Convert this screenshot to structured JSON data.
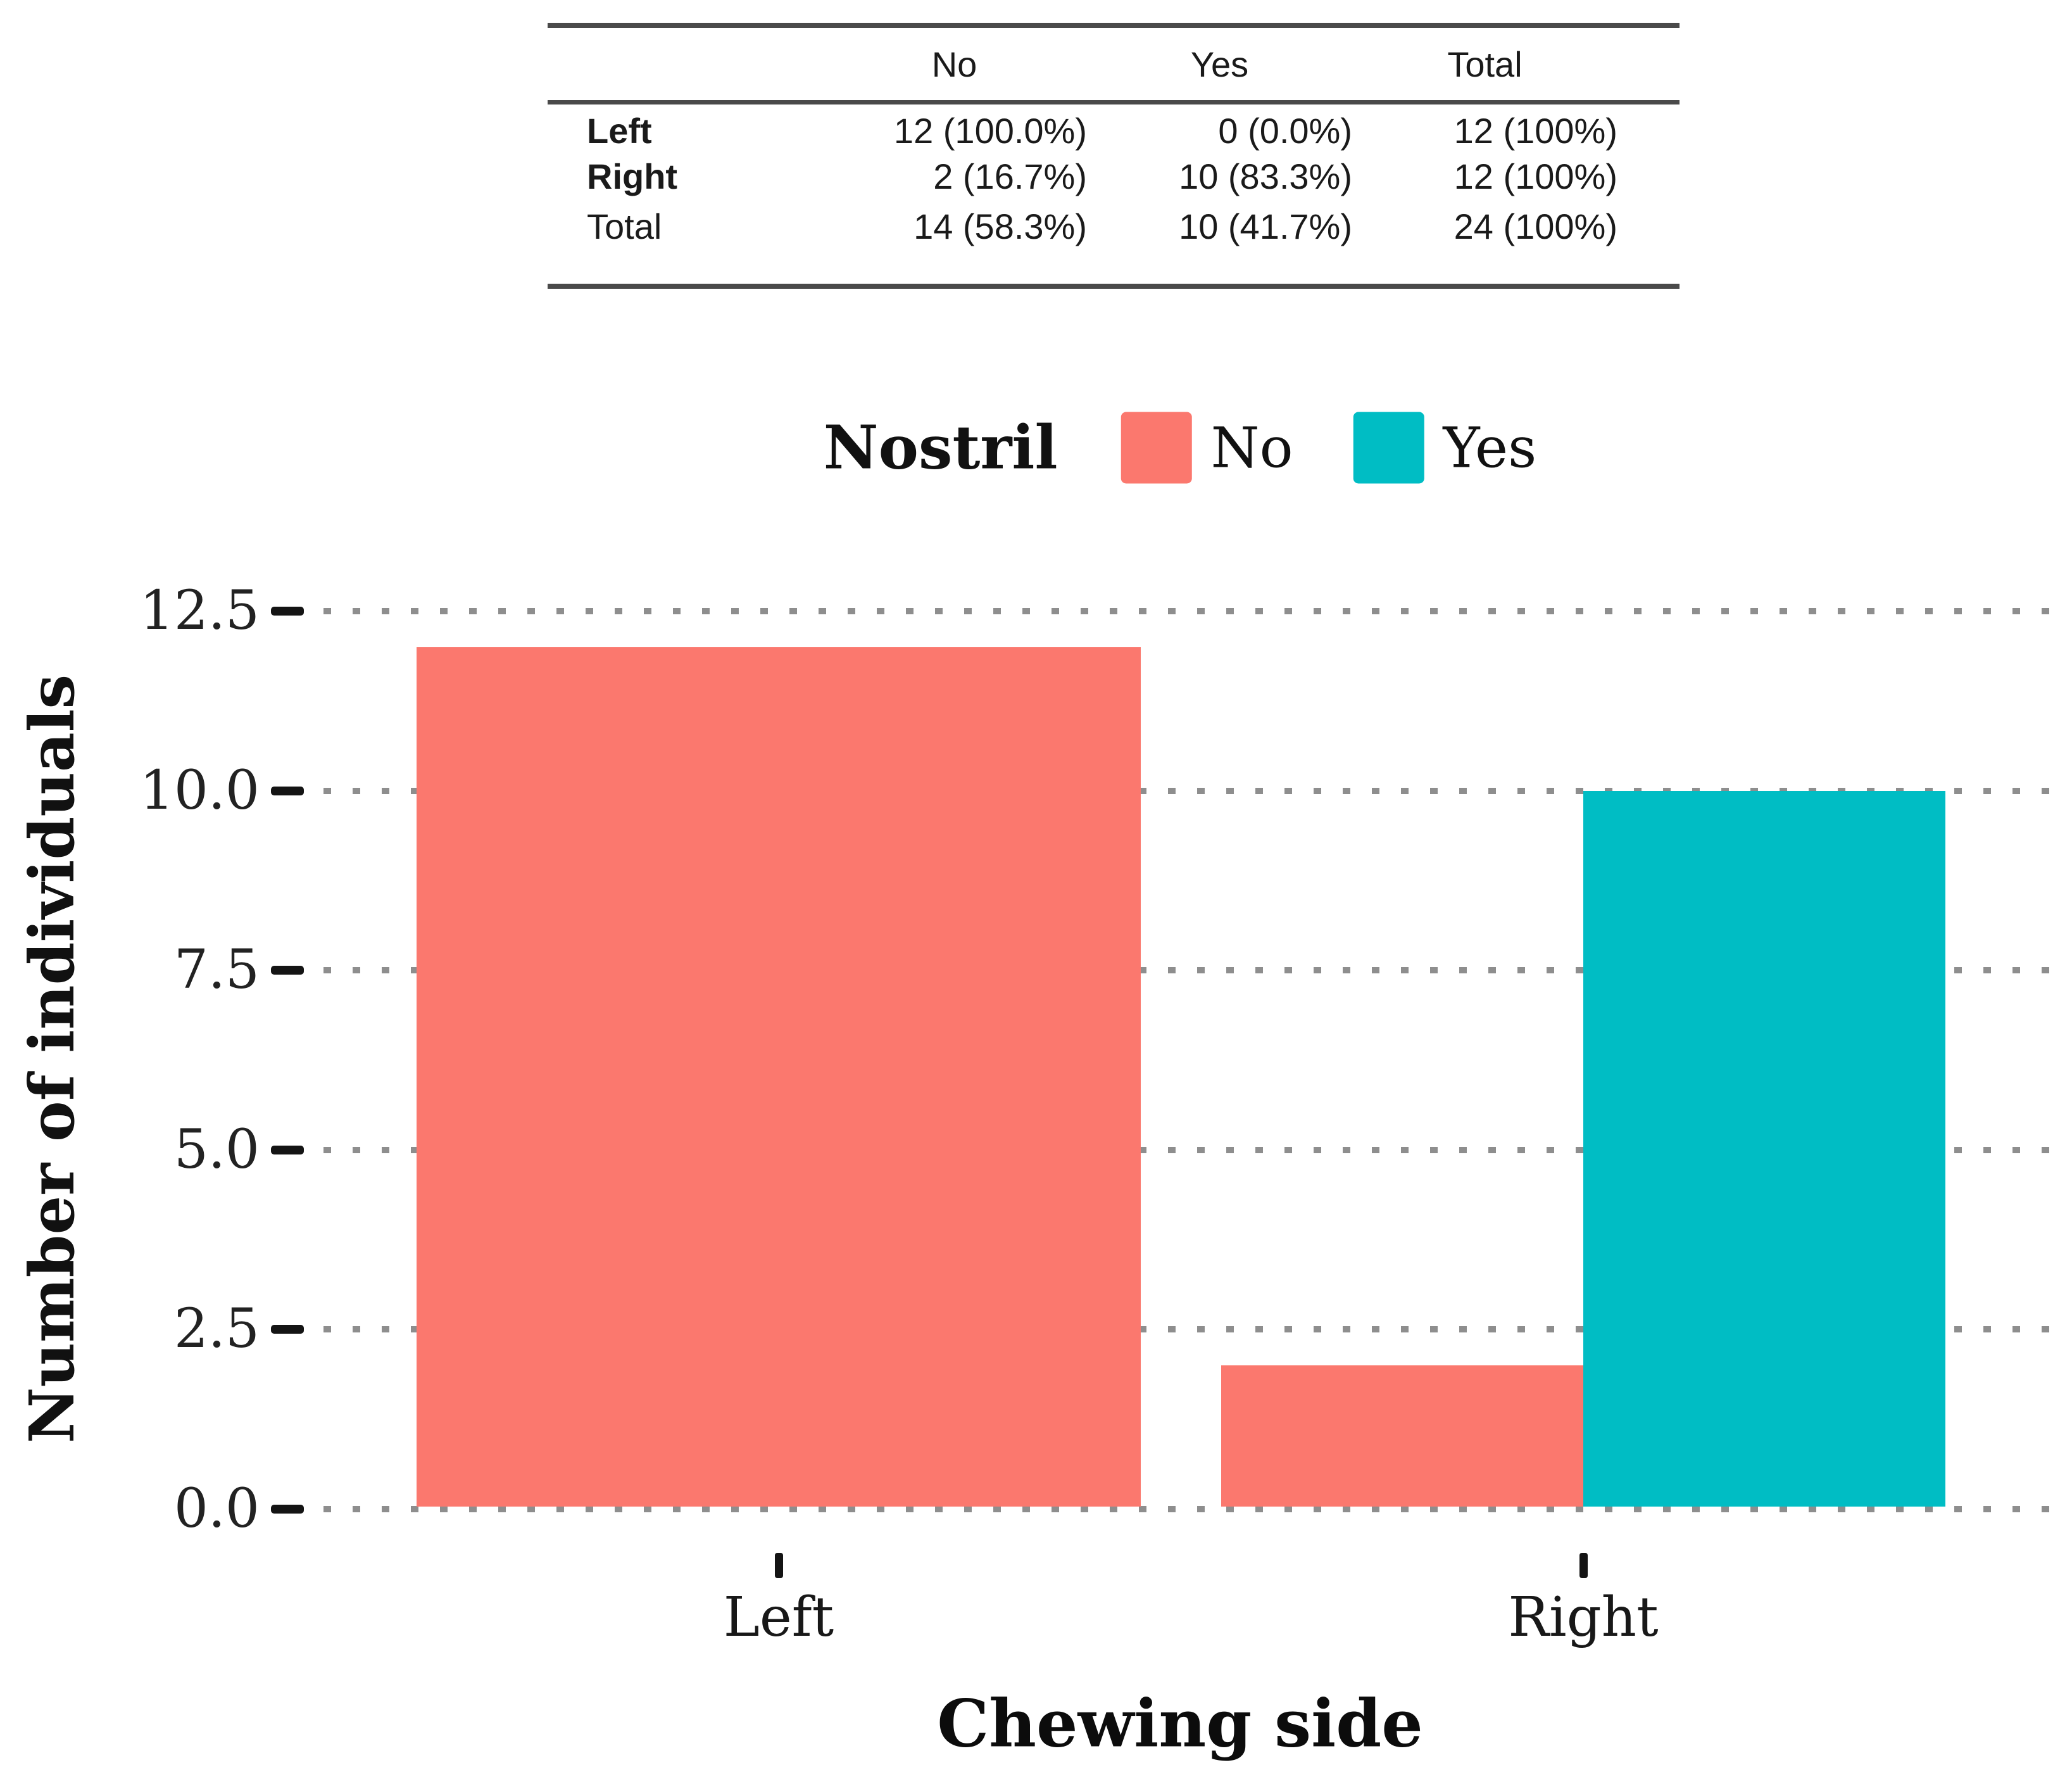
{
  "colors": {
    "no": "#FB786E",
    "yes": "#00BDC4",
    "grid_dot": "#8E8E8E",
    "table_rule": "#4A4A4A",
    "tick": "#141414"
  },
  "table": {
    "col_headers": [
      "No",
      "Yes",
      "Total"
    ],
    "rows": [
      {
        "label": "Left",
        "bold": true,
        "cells": [
          "12 (100.0%)",
          "0 (0.0%)",
          "12 (100%)"
        ]
      },
      {
        "label": "Right",
        "bold": true,
        "cells": [
          "2 (16.7%)",
          "10 (83.3%)",
          "12 (100%)"
        ]
      },
      {
        "label": "Total",
        "bold": false,
        "cells": [
          "14 (58.3%)",
          "10 (41.7%)",
          "24 (100%)"
        ]
      }
    ]
  },
  "legend": {
    "title": "Nostril",
    "items": [
      {
        "label": "No",
        "color": "#FB786E"
      },
      {
        "label": "Yes",
        "color": "#00BDC4"
      }
    ]
  },
  "chart_data": {
    "type": "bar",
    "categories": [
      "Left",
      "Right"
    ],
    "series": [
      {
        "name": "No",
        "color": "#FB786E",
        "values": [
          12,
          2
        ]
      },
      {
        "name": "Yes",
        "color": "#00BDC4",
        "values": [
          0,
          10
        ]
      }
    ],
    "title": "",
    "xlabel": "Chewing side",
    "ylabel": "Number of individuals",
    "ylim": [
      0,
      12.5
    ],
    "ytick_values": [
      0,
      2.5,
      5,
      7.5,
      10,
      12.5
    ],
    "yticks": [
      "0.0",
      "2.5",
      "5.0",
      "7.5",
      "10.0",
      "12.5"
    ],
    "grid": "horizontal dotted",
    "legend_position": "top",
    "bar_mode": "dodge"
  }
}
